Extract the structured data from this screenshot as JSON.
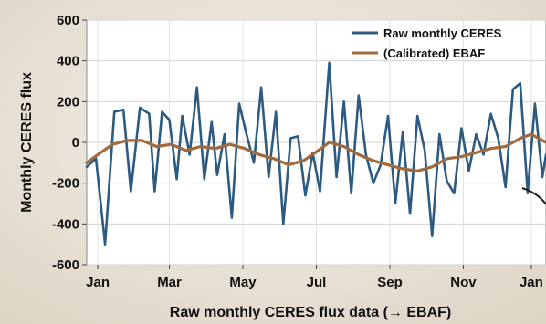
{
  "chart_data": {
    "type": "line",
    "ylabel": "Monthly CERES flux",
    "xlabel": "Raw monthly CERES flux data (→ EBAF)",
    "ylim": [
      -600,
      600
    ],
    "yticks": [
      600,
      400,
      200,
      0,
      -200,
      -400,
      -600
    ],
    "xlim": [
      0,
      12.5
    ],
    "xticks": [
      {
        "label": "Jan",
        "x": 0.3
      },
      {
        "label": "Mar",
        "x": 2.25
      },
      {
        "label": "May",
        "x": 4.25
      },
      {
        "label": "Jul",
        "x": 6.25
      },
      {
        "label": "Sep",
        "x": 8.25
      },
      {
        "label": "Nov",
        "x": 10.25
      },
      {
        "label": "Jan",
        "x": 12.1
      }
    ],
    "grid": true,
    "legend_position": "top-right",
    "series": [
      {
        "name": "Raw monthly CERES",
        "color": "#2d5a80",
        "points": [
          [
            0,
            -120
          ],
          [
            0.25,
            -80
          ],
          [
            0.5,
            -500
          ],
          [
            0.75,
            150
          ],
          [
            1.0,
            160
          ],
          [
            1.2,
            -240
          ],
          [
            1.45,
            170
          ],
          [
            1.7,
            140
          ],
          [
            1.85,
            -240
          ],
          [
            2.05,
            150
          ],
          [
            2.25,
            110
          ],
          [
            2.45,
            -180
          ],
          [
            2.6,
            130
          ],
          [
            2.8,
            -60
          ],
          [
            3.0,
            270
          ],
          [
            3.2,
            -180
          ],
          [
            3.4,
            100
          ],
          [
            3.55,
            -160
          ],
          [
            3.75,
            40
          ],
          [
            3.95,
            -370
          ],
          [
            4.15,
            190
          ],
          [
            4.35,
            40
          ],
          [
            4.55,
            -100
          ],
          [
            4.75,
            270
          ],
          [
            4.95,
            -170
          ],
          [
            5.15,
            150
          ],
          [
            5.35,
            -400
          ],
          [
            5.55,
            20
          ],
          [
            5.75,
            30
          ],
          [
            5.95,
            -260
          ],
          [
            6.15,
            -50
          ],
          [
            6.35,
            -240
          ],
          [
            6.6,
            390
          ],
          [
            6.8,
            -170
          ],
          [
            7.0,
            200
          ],
          [
            7.2,
            -250
          ],
          [
            7.4,
            230
          ],
          [
            7.6,
            -60
          ],
          [
            7.8,
            -200
          ],
          [
            8.0,
            -110
          ],
          [
            8.2,
            130
          ],
          [
            8.4,
            -300
          ],
          [
            8.6,
            50
          ],
          [
            8.8,
            -350
          ],
          [
            9.0,
            130
          ],
          [
            9.2,
            -40
          ],
          [
            9.4,
            -460
          ],
          [
            9.6,
            40
          ],
          [
            9.8,
            -190
          ],
          [
            10.0,
            -250
          ],
          [
            10.2,
            70
          ],
          [
            10.4,
            -140
          ],
          [
            10.6,
            40
          ],
          [
            10.8,
            -60
          ],
          [
            11.0,
            140
          ],
          [
            11.2,
            20
          ],
          [
            11.4,
            -220
          ],
          [
            11.6,
            260
          ],
          [
            11.8,
            290
          ],
          [
            12.0,
            -250
          ],
          [
            12.2,
            190
          ],
          [
            12.4,
            -170
          ],
          [
            12.5,
            -60
          ]
        ]
      },
      {
        "name": "(Calibrated) EBAF",
        "color": "#a06a3c",
        "points": [
          [
            0,
            -100
          ],
          [
            0.3,
            -60
          ],
          [
            0.7,
            -10
          ],
          [
            1.1,
            10
          ],
          [
            1.5,
            10
          ],
          [
            1.9,
            -20
          ],
          [
            2.3,
            -10
          ],
          [
            2.7,
            -40
          ],
          [
            3.1,
            -20
          ],
          [
            3.5,
            -30
          ],
          [
            3.9,
            -10
          ],
          [
            4.3,
            -30
          ],
          [
            4.7,
            -60
          ],
          [
            5.1,
            -80
          ],
          [
            5.5,
            -110
          ],
          [
            5.9,
            -90
          ],
          [
            6.3,
            -40
          ],
          [
            6.6,
            0
          ],
          [
            7.0,
            -20
          ],
          [
            7.4,
            -60
          ],
          [
            7.8,
            -90
          ],
          [
            8.2,
            -110
          ],
          [
            8.6,
            -130
          ],
          [
            9.0,
            -140
          ],
          [
            9.4,
            -120
          ],
          [
            9.8,
            -80
          ],
          [
            10.2,
            -70
          ],
          [
            10.6,
            -50
          ],
          [
            11.0,
            -30
          ],
          [
            11.4,
            -20
          ],
          [
            11.8,
            20
          ],
          [
            12.1,
            40
          ],
          [
            12.5,
            0
          ]
        ]
      }
    ]
  }
}
